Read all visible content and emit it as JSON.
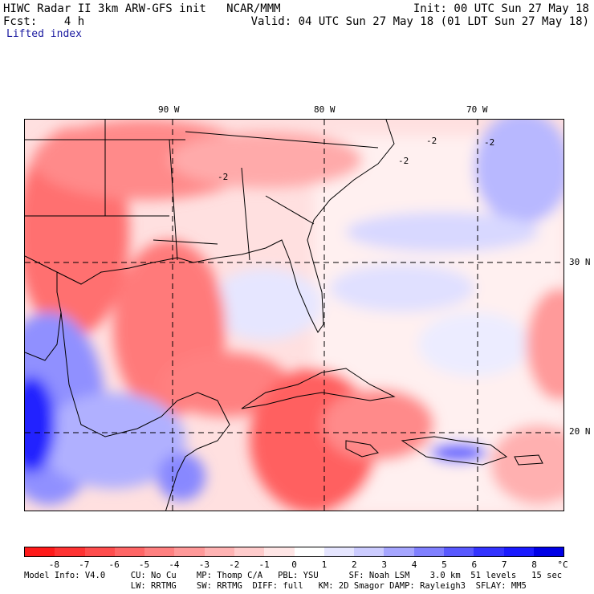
{
  "header": {
    "line1_left": "HIWC Radar II 3km ARW-GFS init   NCAR/MMM",
    "line1_right": "Init: 00 UTC Sun 27 May 18",
    "line2_left": "Fcst:    4 h",
    "line2_right": "Valid: 04 UTC Sun 27 May 18 (01 LDT Sun 27 May 18)",
    "field": "Lifted index"
  },
  "map": {
    "lon_labels": [
      "90 W",
      "80 W",
      "70 W"
    ],
    "lat_labels": [
      "30 N",
      "20 N"
    ],
    "contour_labels": [
      "-2",
      "-2",
      "-2",
      "-2"
    ]
  },
  "colorbar": {
    "labels": [
      "-8",
      "-7",
      "-6",
      "-5",
      "-4",
      "-3",
      "-2",
      "-1",
      "0",
      "1",
      "2",
      "3",
      "4",
      "5",
      "6",
      "7",
      "8"
    ],
    "unit": "°C",
    "colors": [
      "#ff1a1a",
      "#ff3333",
      "#ff4d4d",
      "#ff6666",
      "#ff8080",
      "#ff9999",
      "#ffb3b3",
      "#ffcccc",
      "#ffe6e6",
      "#ffffff",
      "#e6e6ff",
      "#ccccff",
      "#a6a6ff",
      "#8080ff",
      "#5959ff",
      "#3333ff",
      "#1a1aff",
      "#0000e6"
    ]
  },
  "model_info": {
    "line1": "Model Info: V4.0     CU: No Cu    MP: Thomp C/A   PBL: YSU      SF: Noah LSM    3.0 km  51 levels   15 sec",
    "line2": "                     LW: RRTMG    SW: RRTMG  DIFF: full   KM: 2D Smagor DAMP: Rayleigh3  SFLAY: MM5"
  }
}
